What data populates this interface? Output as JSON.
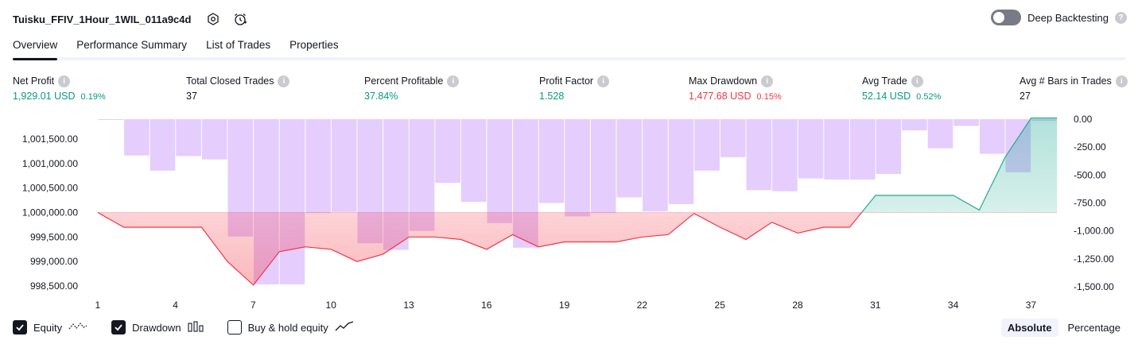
{
  "header": {
    "title": "Tuisku_FFIV_1Hour_1WIL_011a9c4d",
    "deep_backtesting_label": "Deep Backtesting",
    "deep_backtesting_enabled": false
  },
  "tabs": [
    {
      "label": "Overview",
      "active": true
    },
    {
      "label": "Performance Summary",
      "active": false
    },
    {
      "label": "List of Trades",
      "active": false
    },
    {
      "label": "Properties",
      "active": false
    }
  ],
  "metrics": {
    "net_profit": {
      "label": "Net Profit",
      "value": "1,929.01 USD",
      "pct": "0.19%"
    },
    "total_closed_trades": {
      "label": "Total Closed Trades",
      "value": "37"
    },
    "percent_profitable": {
      "label": "Percent Profitable",
      "value": "37.84%"
    },
    "profit_factor": {
      "label": "Profit Factor",
      "value": "1.528"
    },
    "max_drawdown": {
      "label": "Max Drawdown",
      "value": "1,477.68 USD",
      "pct": "0.15%"
    },
    "avg_trade": {
      "label": "Avg Trade",
      "value": "52.14 USD",
      "pct": "0.52%"
    },
    "avg_bars": {
      "label": "Avg # Bars in Trades",
      "value": "27"
    }
  },
  "colors": {
    "green": "#089981",
    "red": "#f23645",
    "drawdown_bar": "#e1c4fd",
    "equity_line_loss": "#f23645",
    "equity_line_gain": "#22ab94"
  },
  "chart_data": {
    "type": "line",
    "x_ticks": [
      1,
      4,
      7,
      10,
      13,
      16,
      19,
      22,
      25,
      28,
      31,
      34,
      37
    ],
    "equity_axis": {
      "ticks": [
        998500,
        999000,
        999500,
        1000000,
        1000500,
        1001000,
        1001500
      ],
      "tick_labels": [
        "998,500.00",
        "999,000.00",
        "999,500.00",
        "1,000,000.00",
        "1,000,500.00",
        "1,001,000.00",
        "1,001,500.00"
      ],
      "baseline": 1000000
    },
    "drawdown_axis": {
      "ticks": [
        0,
        -250,
        -500,
        -750,
        -1000,
        -1250,
        -1500
      ],
      "tick_labels": [
        "0.00",
        "-250.00",
        "-500.00",
        "-750.00",
        "-1,000.00",
        "-1,250.00",
        "-1,500.00"
      ]
    },
    "series": [
      {
        "name": "Equity",
        "x": [
          1,
          2,
          3,
          4,
          5,
          6,
          7,
          8,
          9,
          10,
          11,
          12,
          13,
          14,
          15,
          16,
          17,
          18,
          19,
          20,
          21,
          22,
          23,
          24,
          25,
          26,
          27,
          28,
          29,
          30,
          31,
          32,
          33,
          34,
          35,
          36,
          37,
          38
        ],
        "values": [
          1000000,
          999700,
          999700,
          999700,
          999700,
          999000,
          998520,
          999200,
          999300,
          999250,
          999000,
          999150,
          999500,
          999500,
          999450,
          999250,
          999550,
          999300,
          999400,
          999400,
          999400,
          999500,
          999550,
          999980,
          999700,
          999450,
          999800,
          999580,
          999700,
          999700,
          1000350,
          1000350,
          1000350,
          1000350,
          1000050,
          1001130,
          1001930,
          1001930
        ]
      },
      {
        "name": "Drawdown",
        "x": [
          1,
          2,
          3,
          4,
          5,
          6,
          7,
          8,
          9,
          10,
          11,
          12,
          13,
          14,
          15,
          16,
          17,
          18,
          19,
          20,
          21,
          22,
          23,
          24,
          25,
          26,
          27,
          28,
          29,
          30,
          31,
          32,
          33,
          34,
          35,
          36,
          37,
          38
        ],
        "values": [
          -5,
          -325,
          -460,
          -330,
          -360,
          -1050,
          -1478,
          -1478,
          -840,
          -830,
          -1110,
          -1170,
          -1000,
          -570,
          -740,
          -930,
          -1150,
          -750,
          -870,
          -840,
          -700,
          -825,
          -760,
          -460,
          -340,
          -635,
          -645,
          -530,
          -540,
          -540,
          -490,
          -100,
          -260,
          -60,
          -310,
          -475,
          -15,
          0
        ]
      }
    ],
    "legend": [
      {
        "label": "Equity",
        "checked": true
      },
      {
        "label": "Drawdown",
        "checked": true
      },
      {
        "label": "Buy & hold equity",
        "checked": false
      }
    ],
    "modes": [
      {
        "label": "Absolute",
        "active": true
      },
      {
        "label": "Percentage",
        "active": false
      }
    ]
  }
}
